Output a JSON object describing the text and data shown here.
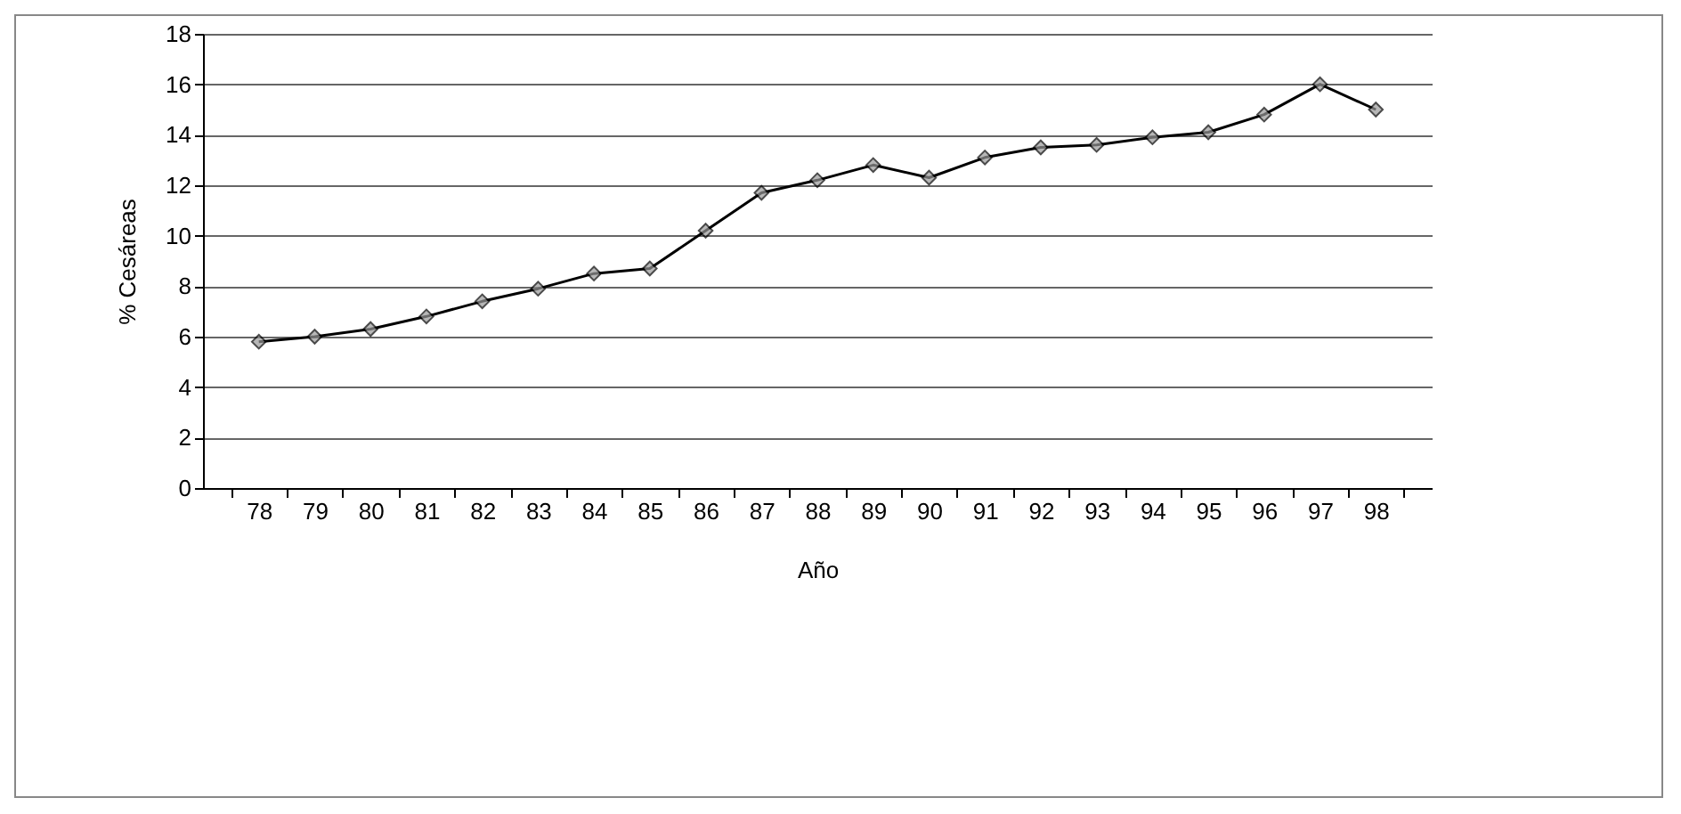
{
  "chart_data": {
    "type": "line",
    "xlabel": "Año",
    "ylabel": "% Cesáreas",
    "categories": [
      "78",
      "79",
      "80",
      "81",
      "82",
      "83",
      "84",
      "85",
      "86",
      "87",
      "88",
      "89",
      "90",
      "91",
      "92",
      "93",
      "94",
      "95",
      "96",
      "97",
      "98"
    ],
    "series": [
      {
        "color": "#000000",
        "values": [
          5.8,
          6.0,
          6.3,
          6.8,
          7.4,
          7.9,
          8.5,
          8.7,
          10.2,
          11.7,
          12.2,
          12.8,
          12.3,
          13.1,
          13.5,
          13.6,
          13.9,
          14.1,
          14.8,
          16.0,
          15.0
        ]
      }
    ],
    "ylim": [
      0,
      18
    ],
    "yticks": [
      0,
      2,
      4,
      6,
      8,
      10,
      12,
      14,
      16,
      18
    ],
    "grid": "y",
    "marker": "diamond",
    "line_style": "solid",
    "legend": false
  }
}
